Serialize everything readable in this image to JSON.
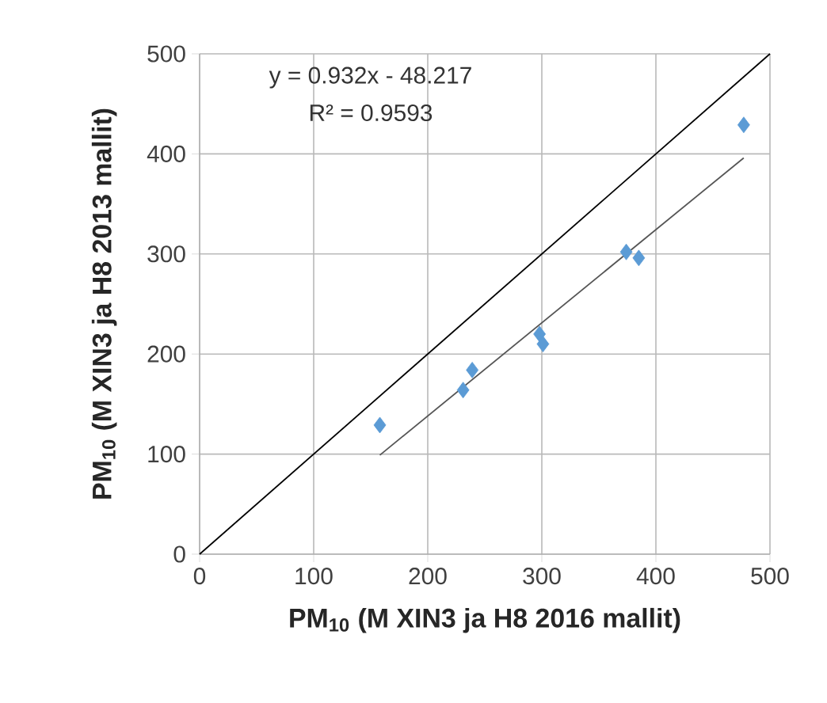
{
  "chart_data": {
    "type": "scatter",
    "xlabel": "**PM$_{10}$ (M XIN3 ja H8 2016 mallit)**",
    "ylabel": "**PM$_{10}$ (M XIN3 ja H8 2013 mallit)**",
    "series": [
      {
        "color": "#5b9bd5",
        "marker": "diamond",
        "x": [
          158,
          231,
          239,
          298,
          301,
          374,
          385,
          477
        ],
        "values": [
          129,
          164,
          184,
          220,
          210,
          302,
          296,
          429
        ]
      },
      {
        "type": "line",
        "color": "#555555",
        "marker": "none",
        "x": [
          158,
          477
        ],
        "values": [
          99,
          396
        ]
      },
      {
        "type": "line",
        "color": "#000000",
        "marker": "none",
        "x": [
          0,
          500
        ],
        "values": [
          0,
          500
        ]
      }
    ],
    "annotations": [
      "y = 0.932x - 48.217",
      "R² = 0.9593"
    ],
    "xlim": [
      0,
      500
    ],
    "ylim": [
      0,
      500
    ],
    "xticks": [
      0,
      100,
      200,
      300,
      400,
      500
    ],
    "yticks": [
      0,
      100,
      200,
      300,
      400,
      500
    ],
    "grid": true
  }
}
